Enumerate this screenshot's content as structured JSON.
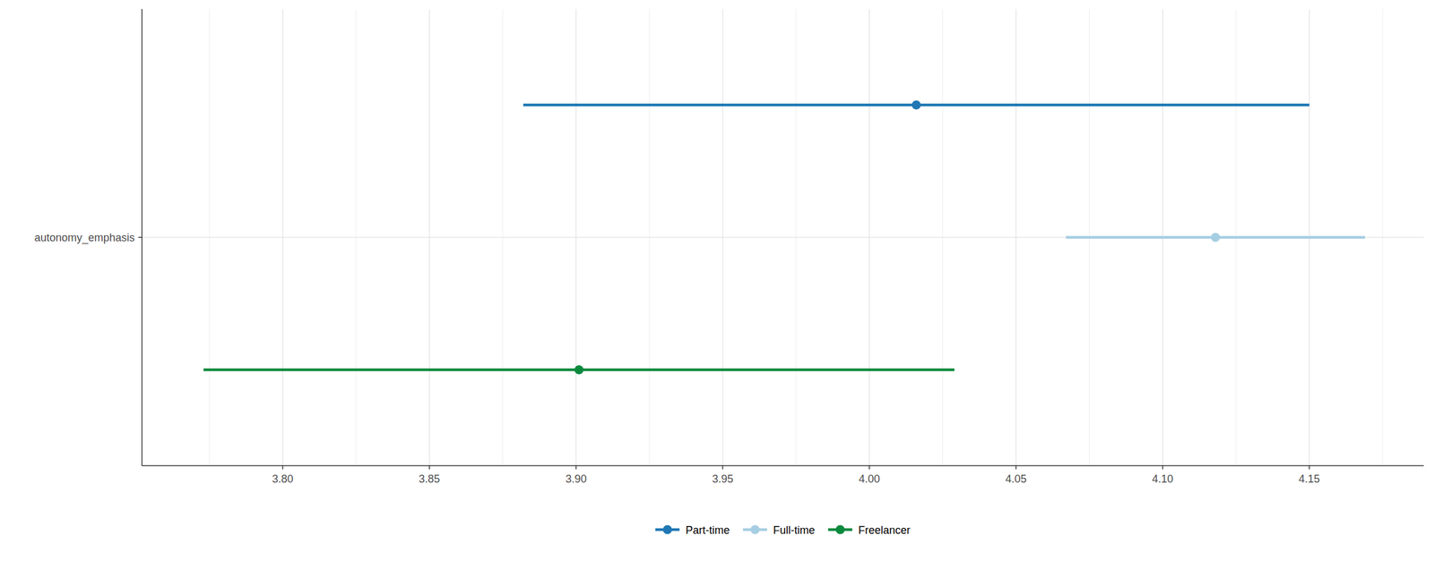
{
  "chart_data": {
    "type": "dot_whisker",
    "orientation": "horizontal",
    "categories": [
      "autonomy_emphasis"
    ],
    "series": [
      {
        "name": "Part-time",
        "color": "#1f78b4",
        "values": [
          4.016
        ],
        "conf_low": [
          3.882
        ],
        "conf_high": [
          4.15
        ]
      },
      {
        "name": "Full-time",
        "color": "#a6cee3",
        "values": [
          4.118
        ],
        "conf_low": [
          4.067
        ],
        "conf_high": [
          4.169
        ]
      },
      {
        "name": "Freelancer",
        "color": "#0b8a3e",
        "values": [
          3.901
        ],
        "conf_low": [
          3.773
        ],
        "conf_high": [
          4.029
        ]
      }
    ],
    "xlim": [
      3.752,
      4.189
    ],
    "xticks": [
      {
        "value": 3.8,
        "label": "3.80"
      },
      {
        "value": 3.85,
        "label": "3.85"
      },
      {
        "value": 3.9,
        "label": "3.90"
      },
      {
        "value": 3.95,
        "label": "3.95"
      },
      {
        "value": 4.0,
        "label": "4.00"
      },
      {
        "value": 4.05,
        "label": "4.05"
      },
      {
        "value": 4.1,
        "label": "4.10"
      },
      {
        "value": 4.15,
        "label": "4.15"
      }
    ],
    "grid": true,
    "legend": "bottom"
  }
}
